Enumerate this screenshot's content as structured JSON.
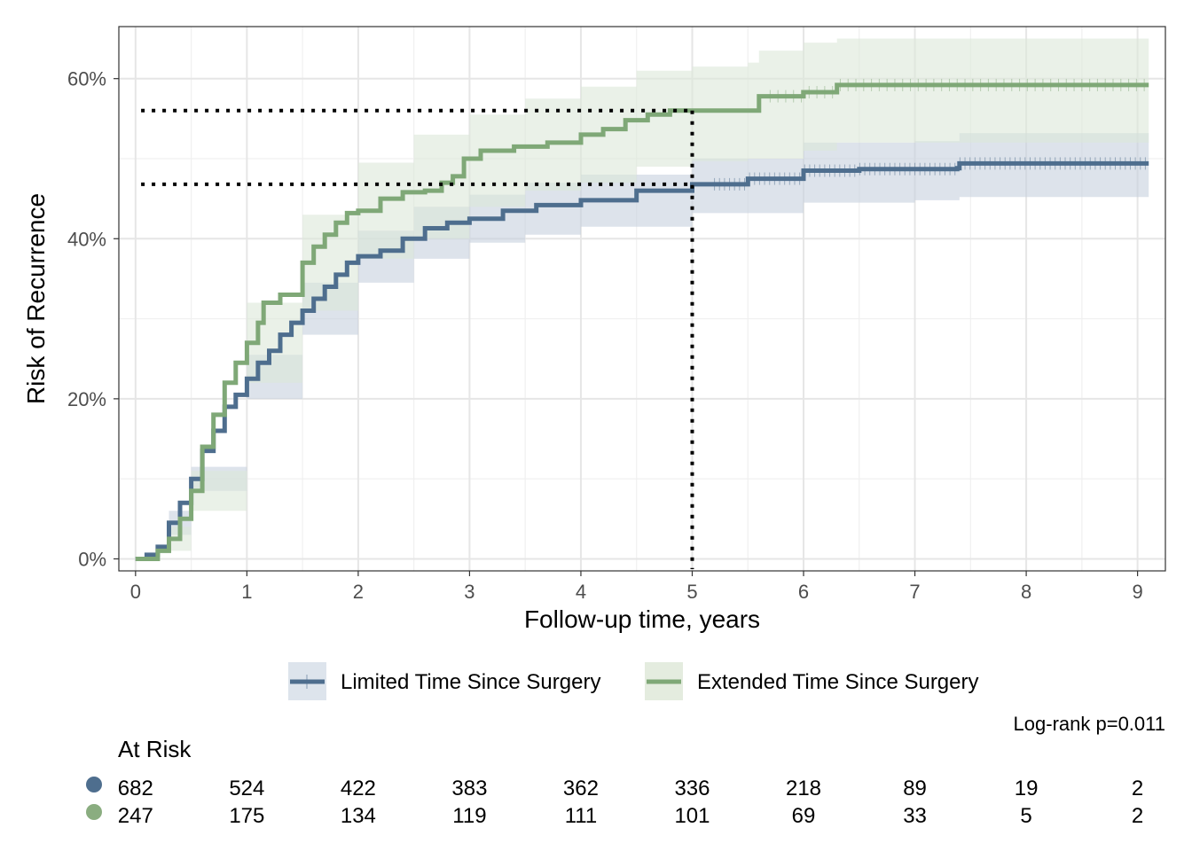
{
  "chart_data": {
    "type": "line",
    "subtype": "kaplan-meier-cumulative-incidence",
    "xlabel": "Follow-up time, years",
    "ylabel": "Risk of Recurrence",
    "xlim": [
      -0.15,
      9.25
    ],
    "ylim": [
      -0.015,
      0.665
    ],
    "x_ticks": [
      0,
      1,
      2,
      3,
      4,
      5,
      6,
      7,
      8,
      9
    ],
    "x_tick_labels": [
      "0",
      "1",
      "2",
      "3",
      "4",
      "5",
      "6",
      "7",
      "8",
      "9"
    ],
    "y_ticks": [
      0,
      0.2,
      0.4,
      0.6
    ],
    "y_tick_labels": [
      "0%",
      "20%",
      "40%",
      "60%"
    ],
    "grid": true,
    "legend_position": "bottom",
    "annotation": "Log-rank p=0.011",
    "reference_lines": {
      "x": 5,
      "y": [
        0.56,
        0.468
      ]
    },
    "series": [
      {
        "name": "Limited Time Since Surgery",
        "color": "#4e6e8e",
        "band_color": "#c6d1de",
        "points": [
          [
            0,
            0
          ],
          [
            0.1,
            0.005
          ],
          [
            0.2,
            0.015
          ],
          [
            0.3,
            0.045
          ],
          [
            0.4,
            0.07
          ],
          [
            0.5,
            0.1
          ],
          [
            0.6,
            0.135
          ],
          [
            0.7,
            0.16
          ],
          [
            0.8,
            0.19
          ],
          [
            0.9,
            0.205
          ],
          [
            1.0,
            0.225
          ],
          [
            1.1,
            0.245
          ],
          [
            1.2,
            0.26
          ],
          [
            1.3,
            0.28
          ],
          [
            1.4,
            0.295
          ],
          [
            1.5,
            0.31
          ],
          [
            1.6,
            0.325
          ],
          [
            1.7,
            0.34
          ],
          [
            1.8,
            0.355
          ],
          [
            1.9,
            0.37
          ],
          [
            2.0,
            0.378
          ],
          [
            2.2,
            0.385
          ],
          [
            2.4,
            0.4
          ],
          [
            2.6,
            0.413
          ],
          [
            2.8,
            0.42
          ],
          [
            3.0,
            0.425
          ],
          [
            3.3,
            0.435
          ],
          [
            3.6,
            0.442
          ],
          [
            4.0,
            0.448
          ],
          [
            4.5,
            0.46
          ],
          [
            5.0,
            0.468
          ],
          [
            5.5,
            0.475
          ],
          [
            6.0,
            0.485
          ],
          [
            6.5,
            0.487
          ],
          [
            7.0,
            0.487
          ],
          [
            7.38,
            0.488
          ],
          [
            7.4,
            0.494
          ],
          [
            8.0,
            0.494
          ],
          [
            9.1,
            0.494
          ]
        ],
        "lower": [
          [
            0,
            0
          ],
          [
            0.3,
            0.03
          ],
          [
            0.5,
            0.085
          ],
          [
            1.0,
            0.2
          ],
          [
            1.5,
            0.28
          ],
          [
            2.0,
            0.345
          ],
          [
            2.5,
            0.375
          ],
          [
            3.0,
            0.395
          ],
          [
            3.5,
            0.405
          ],
          [
            4.0,
            0.415
          ],
          [
            5.0,
            0.432
          ],
          [
            6.0,
            0.445
          ],
          [
            7.0,
            0.448
          ],
          [
            7.38,
            0.448
          ],
          [
            7.4,
            0.452
          ],
          [
            9.1,
            0.452
          ]
        ],
        "upper": [
          [
            0,
            0
          ],
          [
            0.3,
            0.06
          ],
          [
            0.5,
            0.115
          ],
          [
            1.0,
            0.255
          ],
          [
            1.5,
            0.345
          ],
          [
            2.0,
            0.41
          ],
          [
            2.5,
            0.44
          ],
          [
            3.0,
            0.455
          ],
          [
            3.5,
            0.47
          ],
          [
            4.0,
            0.48
          ],
          [
            5.0,
            0.5
          ],
          [
            6.0,
            0.52
          ],
          [
            7.0,
            0.522
          ],
          [
            7.38,
            0.522
          ],
          [
            7.4,
            0.532
          ],
          [
            9.1,
            0.532
          ]
        ],
        "at_risk": [
          "682",
          "524",
          "422",
          "383",
          "362",
          "336",
          "218",
          "89",
          "19",
          "2"
        ]
      },
      {
        "name": "Extended Time Since Surgery",
        "color": "#7fa877",
        "band_color": "#dce8d8",
        "points": [
          [
            0,
            0
          ],
          [
            0.2,
            0.01
          ],
          [
            0.3,
            0.025
          ],
          [
            0.4,
            0.05
          ],
          [
            0.5,
            0.085
          ],
          [
            0.6,
            0.14
          ],
          [
            0.7,
            0.18
          ],
          [
            0.8,
            0.22
          ],
          [
            0.9,
            0.245
          ],
          [
            1.0,
            0.27
          ],
          [
            1.1,
            0.295
          ],
          [
            1.15,
            0.32
          ],
          [
            1.3,
            0.33
          ],
          [
            1.4,
            0.33
          ],
          [
            1.5,
            0.37
          ],
          [
            1.6,
            0.39
          ],
          [
            1.7,
            0.405
          ],
          [
            1.8,
            0.42
          ],
          [
            1.9,
            0.432
          ],
          [
            2.0,
            0.435
          ],
          [
            2.2,
            0.45
          ],
          [
            2.4,
            0.458
          ],
          [
            2.6,
            0.46
          ],
          [
            2.75,
            0.47
          ],
          [
            2.85,
            0.478
          ],
          [
            2.95,
            0.5
          ],
          [
            3.1,
            0.51
          ],
          [
            3.4,
            0.515
          ],
          [
            3.7,
            0.52
          ],
          [
            4.0,
            0.53
          ],
          [
            4.2,
            0.537
          ],
          [
            4.4,
            0.548
          ],
          [
            4.6,
            0.555
          ],
          [
            4.8,
            0.56
          ],
          [
            5.0,
            0.56
          ],
          [
            5.5,
            0.56
          ],
          [
            5.6,
            0.578
          ],
          [
            6.0,
            0.583
          ],
          [
            6.27,
            0.583
          ],
          [
            6.3,
            0.592
          ],
          [
            7.0,
            0.592
          ],
          [
            9.1,
            0.592
          ]
        ],
        "lower": [
          [
            0,
            0
          ],
          [
            0.3,
            0.01
          ],
          [
            0.5,
            0.06
          ],
          [
            1.0,
            0.22
          ],
          [
            1.5,
            0.31
          ],
          [
            2.0,
            0.375
          ],
          [
            2.5,
            0.4
          ],
          [
            3.0,
            0.44
          ],
          [
            3.5,
            0.46
          ],
          [
            4.0,
            0.47
          ],
          [
            4.5,
            0.49
          ],
          [
            5.0,
            0.497
          ],
          [
            5.5,
            0.5
          ],
          [
            6.0,
            0.51
          ],
          [
            6.3,
            0.52
          ],
          [
            9.1,
            0.52
          ]
        ],
        "upper": [
          [
            0,
            0
          ],
          [
            0.3,
            0.04
          ],
          [
            0.5,
            0.11
          ],
          [
            1.0,
            0.32
          ],
          [
            1.5,
            0.43
          ],
          [
            2.0,
            0.495
          ],
          [
            2.5,
            0.53
          ],
          [
            3.0,
            0.555
          ],
          [
            3.5,
            0.575
          ],
          [
            4.0,
            0.59
          ],
          [
            4.5,
            0.61
          ],
          [
            5.0,
            0.615
          ],
          [
            5.5,
            0.62
          ],
          [
            5.6,
            0.635
          ],
          [
            6.0,
            0.645
          ],
          [
            6.3,
            0.65
          ],
          [
            9.1,
            0.65
          ]
        ],
        "at_risk": [
          "247",
          "175",
          "134",
          "119",
          "111",
          "101",
          "69",
          "33",
          "5",
          "2"
        ]
      }
    ],
    "risk_table_title": "At Risk"
  }
}
